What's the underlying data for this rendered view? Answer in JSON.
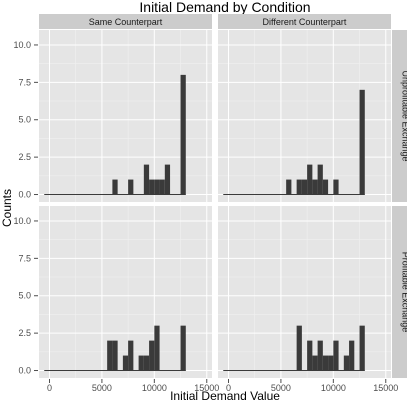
{
  "chart_data": {
    "type": "bar",
    "title": "Initial Demand by Condition",
    "xlabel": "Initial Demand Value",
    "ylabel": "Counts",
    "xlim": [
      -1000,
      15500
    ],
    "ylim": [
      -0.5,
      11
    ],
    "xticks": [
      0,
      5000,
      10000,
      15000
    ],
    "xtick_labels": [
      "0",
      "5000",
      "10000",
      "15000"
    ],
    "yticks": [
      0,
      2.5,
      5,
      7.5,
      10
    ],
    "ytick_labels": [
      "0.0",
      "2.5",
      "5.0",
      "7.5",
      "10.0"
    ],
    "bin_width": 500,
    "grid": true,
    "bar_color": "#3a3a3a",
    "panel_bg": "#e5e5e5",
    "strip_bg": "#cccccc",
    "col_facets": [
      "Same Counterpart",
      "Different Counterpart"
    ],
    "row_facets": [
      "Unprofitable Exchange",
      "Profitable Exchange"
    ],
    "panels": [
      {
        "col": "Same Counterpart",
        "row": "Unprofitable Exchange",
        "bins": [
          {
            "x": 6250,
            "count": 1
          },
          {
            "x": 7750,
            "count": 1
          },
          {
            "x": 9250,
            "count": 2
          },
          {
            "x": 9750,
            "count": 1
          },
          {
            "x": 10250,
            "count": 1
          },
          {
            "x": 10750,
            "count": 1
          },
          {
            "x": 11250,
            "count": 2
          },
          {
            "x": 12750,
            "count": 8
          }
        ]
      },
      {
        "col": "Different Counterpart",
        "row": "Unprofitable Exchange",
        "bins": [
          {
            "x": 5750,
            "count": 1
          },
          {
            "x": 6750,
            "count": 1
          },
          {
            "x": 7250,
            "count": 1
          },
          {
            "x": 7750,
            "count": 2
          },
          {
            "x": 8250,
            "count": 1
          },
          {
            "x": 8750,
            "count": 2
          },
          {
            "x": 9250,
            "count": 1
          },
          {
            "x": 10250,
            "count": 1
          },
          {
            "x": 12750,
            "count": 7
          }
        ]
      },
      {
        "col": "Same Counterpart",
        "row": "Profitable Exchange",
        "bins": [
          {
            "x": 5750,
            "count": 2
          },
          {
            "x": 6250,
            "count": 2
          },
          {
            "x": 7250,
            "count": 1
          },
          {
            "x": 7750,
            "count": 2
          },
          {
            "x": 8750,
            "count": 1
          },
          {
            "x": 9250,
            "count": 1
          },
          {
            "x": 9750,
            "count": 2
          },
          {
            "x": 10250,
            "count": 3
          },
          {
            "x": 12750,
            "count": 3
          }
        ]
      },
      {
        "col": "Different Counterpart",
        "row": "Profitable Exchange",
        "bins": [
          {
            "x": 6750,
            "count": 3
          },
          {
            "x": 7750,
            "count": 2
          },
          {
            "x": 8250,
            "count": 1
          },
          {
            "x": 8750,
            "count": 2
          },
          {
            "x": 9250,
            "count": 1
          },
          {
            "x": 9750,
            "count": 1
          },
          {
            "x": 10250,
            "count": 2
          },
          {
            "x": 11250,
            "count": 1
          },
          {
            "x": 11750,
            "count": 2
          },
          {
            "x": 12750,
            "count": 3
          }
        ]
      }
    ]
  }
}
